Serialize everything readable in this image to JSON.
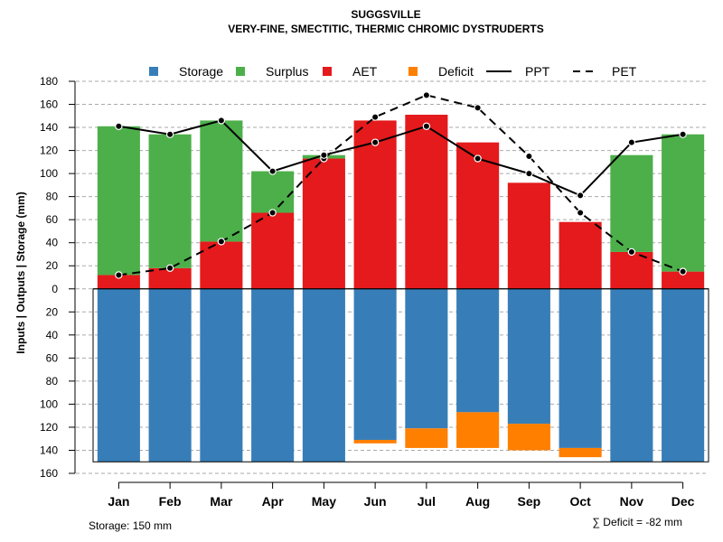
{
  "chart_data": {
    "type": "bar",
    "title": "SUGGSVILLE",
    "subtitle": "VERY-FINE, SMECTITIC, THERMIC CHROMIC DYSTRUDERTS",
    "ylabel": "Inputs | Outputs | Storage    (mm)",
    "categories": [
      "Jan",
      "Feb",
      "Mar",
      "Apr",
      "May",
      "Jun",
      "Jul",
      "Aug",
      "Sep",
      "Oct",
      "Nov",
      "Dec"
    ],
    "ylim": [
      -160,
      180
    ],
    "y_ticks": [
      180,
      160,
      140,
      120,
      100,
      80,
      60,
      40,
      20,
      0,
      -20,
      -40,
      -60,
      -80,
      -100,
      -120,
      -140,
      -160
    ],
    "y_tick_labels": [
      "180",
      "160",
      "140",
      "120",
      "100",
      "80",
      "60",
      "40",
      "20",
      "0",
      "20",
      "40",
      "60",
      "80",
      "100",
      "120",
      "140",
      "160"
    ],
    "legend": {
      "placement": "top",
      "entries": [
        {
          "label": "Storage",
          "kind": "box",
          "color": "#377eb8"
        },
        {
          "label": "Surplus",
          "kind": "box",
          "color": "#4daf4a"
        },
        {
          "label": "AET",
          "kind": "box",
          "color": "#e41a1c"
        },
        {
          "label": "Deficit",
          "kind": "box",
          "color": "#ff7f00"
        },
        {
          "label": "PPT",
          "kind": "solid-line",
          "color": "#000000"
        },
        {
          "label": "PET",
          "kind": "dashed-line",
          "color": "#000000"
        }
      ]
    },
    "series": [
      {
        "name": "AET",
        "color": "#e41a1c",
        "values": [
          12,
          18,
          41,
          66,
          113,
          146,
          151,
          127,
          92,
          58,
          32,
          15
        ]
      },
      {
        "name": "Surplus",
        "color": "#4daf4a",
        "values": [
          129,
          116,
          105,
          36,
          3,
          0,
          0,
          0,
          0,
          0,
          84,
          119
        ]
      },
      {
        "name": "Storage",
        "color": "#377eb8",
        "values": [
          150,
          150,
          150,
          150,
          150,
          131,
          121,
          107,
          117,
          138,
          150,
          150
        ]
      },
      {
        "name": "Deficit",
        "color": "#ff7f00",
        "values": [
          0,
          0,
          0,
          0,
          0,
          3,
          17,
          31,
          23,
          8,
          0,
          0
        ]
      },
      {
        "name": "PPT",
        "color": "#000000",
        "style": "solid",
        "values": [
          141,
          134,
          146,
          102,
          116,
          127,
          141,
          113,
          100,
          81,
          127,
          134
        ]
      },
      {
        "name": "PET",
        "color": "#000000",
        "style": "dashed",
        "values": [
          12,
          18,
          41,
          66,
          113,
          149,
          168,
          157,
          115,
          66,
          32,
          15
        ]
      }
    ],
    "storage_capacity": 150,
    "annotations": {
      "storage": "Storage: 150 mm",
      "deficit": "∑ Deficit = -82 mm"
    }
  }
}
